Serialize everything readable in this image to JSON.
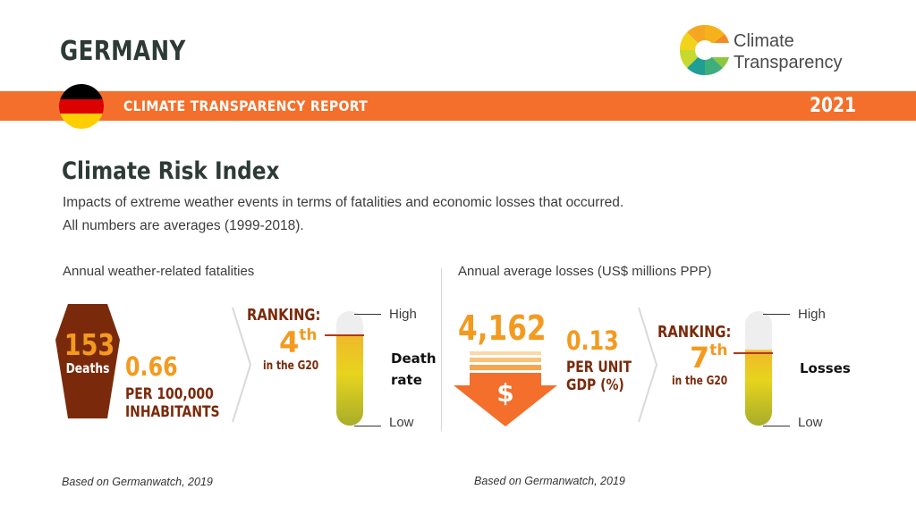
{
  "header": {
    "country": "GERMANY",
    "logo_text_line1": "Climate",
    "logo_text_line2": "Transparency",
    "banner_label": "CLIMATE TRANSPARENCY REPORT",
    "year": "2021"
  },
  "colors": {
    "banner": "#f36f2b",
    "accent_orange": "#f39a1f",
    "accent_brown": "#7a2a0a",
    "flag": [
      "#000000",
      "#dd0000",
      "#ffce00"
    ]
  },
  "main": {
    "title": "Climate Risk Index",
    "subtitle_line1": "Impacts of extreme weather events in terms of fatalities and economic losses that occurred.",
    "subtitle_line2": "All numbers are averages (1999-2018)."
  },
  "fatalities": {
    "heading": "Annual weather-related fatalities",
    "deaths_value": "153",
    "deaths_label": "Deaths",
    "rate_value": "0.66",
    "rate_label_line1": "PER 100,000",
    "rate_label_line2": "INHABITANTS",
    "ranking_label": "RANKING:",
    "ranking_number": "4",
    "ranking_suffix": "th",
    "ranking_scope": "in the G20",
    "scale_high": "High",
    "scale_low": "Low",
    "scale_name_line1": "Death",
    "scale_name_line2": "rate",
    "rank_position": 4,
    "rank_total": 20,
    "source": "Based on Germanwatch, 2019"
  },
  "losses": {
    "heading": "Annual average losses (US$ millions PPP)",
    "value": "4,162",
    "currency_symbol": "$",
    "gdp_value": "0.13",
    "gdp_label_line1": "PER UNIT",
    "gdp_label_line2": "GDP (%)",
    "ranking_label": "RANKING:",
    "ranking_number": "7",
    "ranking_suffix": "th",
    "ranking_scope": "in the G20",
    "scale_high": "High",
    "scale_low": "Low",
    "scale_name": "Losses",
    "rank_position": 7,
    "rank_total": 20,
    "source": "Based on Germanwatch, 2019"
  }
}
